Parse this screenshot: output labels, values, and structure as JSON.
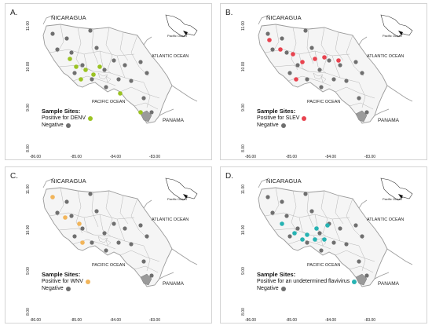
{
  "colors": {
    "negative": "#6f6f6f",
    "denv": "#9bc322",
    "slev": "#e8434f",
    "wnv": "#f2b55a",
    "flavivirus": "#27b3b3",
    "border": "#9a9a9a",
    "land": "#f5f5f5"
  },
  "labels": {
    "nicaragua": "NICARAGUA",
    "panama": "PANAMA",
    "atlantic": "ATLANTIC OCEAN",
    "pacific": "PACIFIC OCEAN",
    "inset_pacific": "Pacific Ocean"
  },
  "axes": {
    "x_ticks": [
      "-86.00",
      "-85.00",
      "-84.00",
      "-83.00"
    ],
    "y_ticks": [
      "11.00",
      "10.00",
      "9.00",
      "8.00"
    ]
  },
  "panels": [
    {
      "letter": "A.",
      "legend_title": "Sample Sites:",
      "positive_label": "Positive for DENV",
      "positive_color_key": "denv",
      "negative_label": "Negative"
    },
    {
      "letter": "B.",
      "legend_title": "Sample Sites:",
      "positive_label": "Positive for SLEV",
      "positive_color_key": "slev",
      "negative_label": "Negative"
    },
    {
      "letter": "C.",
      "legend_title": "Sample Sites:",
      "positive_label": "Positive for WNV",
      "positive_color_key": "wnv",
      "negative_label": "Negative"
    },
    {
      "letter": "D.",
      "legend_title": "Sample Sites:",
      "positive_label": "Positive for an undetermined flavivirus",
      "positive_color_key": "flavivirus",
      "negative_label": "Negative"
    }
  ]
}
